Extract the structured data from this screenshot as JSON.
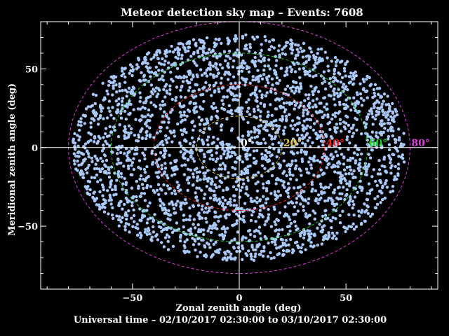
{
  "chart_data": {
    "type": "scatter",
    "title": "Meteor detection sky map – Events: 7608",
    "xlabel": "Zonal zenith angle (deg)",
    "ylabel": "Meridional zenith angle (deg)",
    "subtitle": "Universal time – 02/10/2017 02:30:00 to 03/10/2017 02:30:00",
    "events": 7608,
    "xlim": [
      -93,
      93
    ],
    "ylim": [
      -90,
      80
    ],
    "x_ticks": [
      -50,
      0,
      50
    ],
    "y_ticks": [
      -50,
      0,
      50
    ],
    "x_tick_labels": [
      "−50",
      "0",
      "50"
    ],
    "y_tick_labels": [
      "−50",
      "0",
      "50"
    ],
    "point_color": "#a8c8f8",
    "axis_line_color": "#ffffff",
    "zenith_rings": [
      {
        "label": "0°",
        "value": 0,
        "color": "#ffffff"
      },
      {
        "label": "20°",
        "value": 20,
        "color": "#e8c840"
      },
      {
        "label": "40°",
        "value": 40,
        "color": "#ff2020"
      },
      {
        "label": "60°",
        "value": 60,
        "color": "#20d020"
      },
      {
        "label": "80°",
        "value": 80,
        "color": "#e040e0"
      }
    ],
    "scatter_region": {
      "semi_axis_x": 78,
      "semi_axis_y": 72,
      "inner_gap_radius": 8,
      "inner_gap_center": [
        -5,
        12
      ]
    }
  }
}
